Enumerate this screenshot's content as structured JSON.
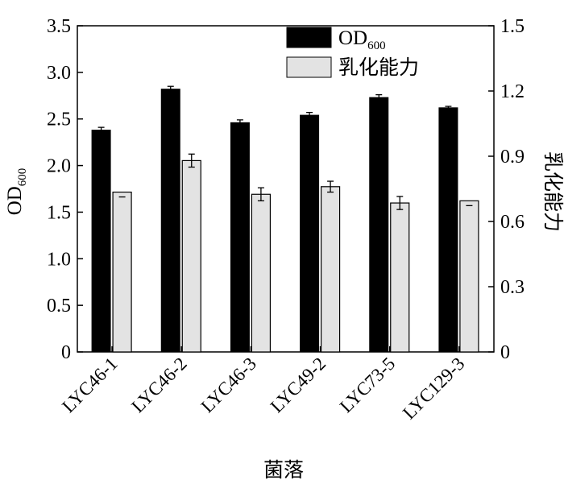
{
  "chart_data": {
    "type": "bar",
    "categories": [
      "LYC46-1",
      "LYC46-2",
      "LYC46-3",
      "LYC49-2",
      "LYC73-5",
      "LYC129-3"
    ],
    "series": [
      {
        "name": "OD600",
        "axis": "left",
        "color": "#000000",
        "values": [
          2.38,
          2.82,
          2.46,
          2.54,
          2.73,
          2.62
        ],
        "errors": [
          0.03,
          0.03,
          0.03,
          0.03,
          0.03,
          0.015
        ]
      },
      {
        "name": "乳化能力",
        "axis": "right",
        "color": "#e3e3e3",
        "values": [
          0.735,
          0.88,
          0.725,
          0.76,
          0.685,
          0.695
        ],
        "errors": [
          0.0,
          0.03,
          0.03,
          0.025,
          0.03,
          0.0
        ]
      }
    ],
    "xlabel": "菌落",
    "ylabel_main": "OD",
    "ylabel_sub": "600",
    "y2label": "乳化能力",
    "ylim": [
      0,
      3.5
    ],
    "y2lim": [
      0,
      1.5
    ],
    "yticks": [
      "0",
      "0.5",
      "1.0",
      "1.5",
      "2.0",
      "2.5",
      "3.0",
      "3.5"
    ],
    "y2ticks": [
      "0",
      "0.3",
      "0.6",
      "0.9",
      "1.2",
      "1.5"
    ],
    "legend": {
      "position": "top-right",
      "entries": [
        {
          "main": "OD",
          "sub": "600",
          "color": "#000000"
        },
        {
          "main": "乳化能力",
          "sub": "",
          "color": "#e3e3e3"
        }
      ]
    },
    "grid": false
  }
}
